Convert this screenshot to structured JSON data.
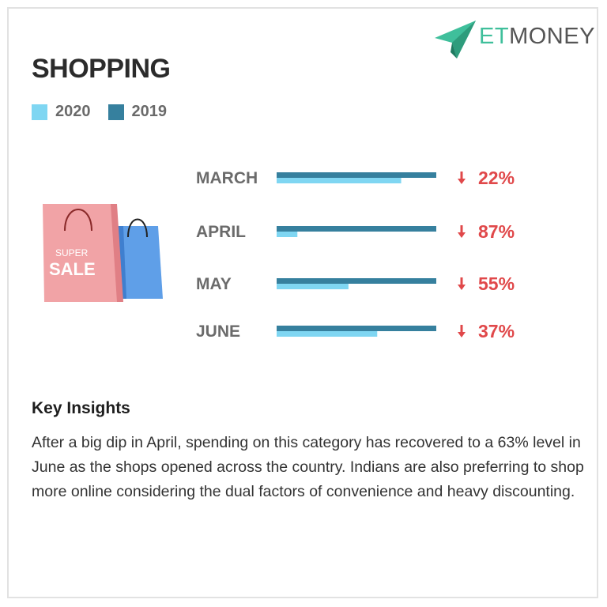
{
  "logo": {
    "prefix": "ET",
    "suffix": "MONEY"
  },
  "title": "SHOPPING",
  "colors": {
    "series_2020": "#7fd6f2",
    "series_2019": "#36809e",
    "decline": "#e0484a",
    "label": "#6b6b6b"
  },
  "bag": {
    "line1": "SUPER",
    "line2": "SALE"
  },
  "chart_data": {
    "type": "bar",
    "orientation": "horizontal",
    "categories": [
      "MARCH",
      "APRIL",
      "MAY",
      "JUNE"
    ],
    "series": [
      {
        "name": "2020",
        "values": [
          78,
          13,
          45,
          63
        ]
      },
      {
        "name": "2019",
        "values": [
          100,
          100,
          100,
          100
        ]
      }
    ],
    "changes": [
      "22%",
      "87%",
      "55%",
      "37%"
    ],
    "change_direction": "down",
    "xlim": [
      0,
      100
    ],
    "legend": "top-left",
    "grid": false
  },
  "insights": {
    "title": "Key Insights",
    "body": "After a big dip in April, spending on this category has recovered to a 63% level in June as the shops opened across the country. Indians are also preferring to shop more online considering the dual factors of convenience and heavy discounting."
  }
}
